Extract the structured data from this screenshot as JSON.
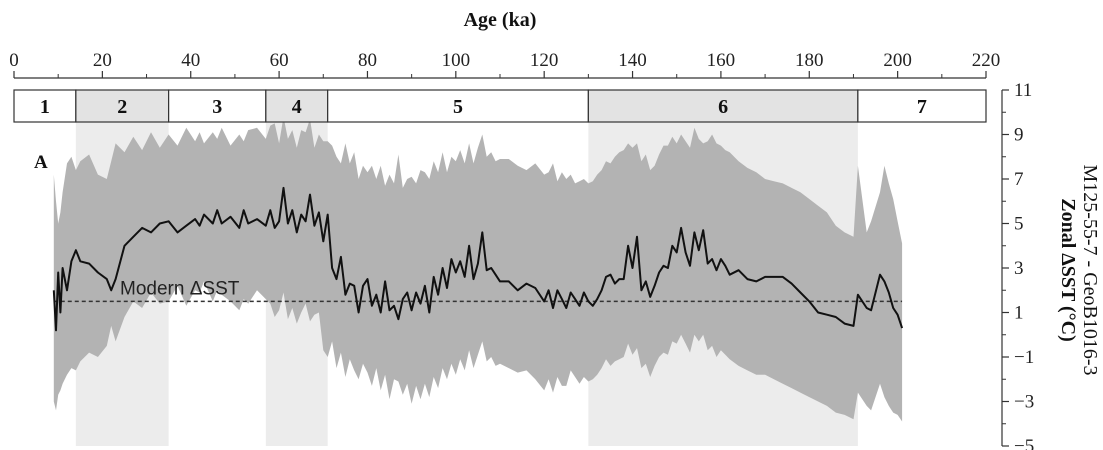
{
  "chart_data": {
    "type": "line",
    "title": "",
    "panel_label": "A",
    "xlabel": "Age (ka)",
    "ylabel": [
      "Zonal ΔSST (°C)",
      "M125-55-7 - GeoB1016-3"
    ],
    "xlim": [
      0,
      220
    ],
    "ylim": [
      -5,
      11
    ],
    "x_ticks": [
      0,
      20,
      40,
      60,
      80,
      100,
      120,
      140,
      160,
      180,
      200,
      220
    ],
    "y_ticks": [
      -5,
      -3,
      -1,
      1,
      3,
      5,
      7,
      9,
      11
    ],
    "y_tick_labels": [
      "−5",
      "−3",
      "−1",
      "1",
      "3",
      "5",
      "7",
      "9",
      "11"
    ],
    "grid": false,
    "stages": [
      {
        "label": "1",
        "start": 0,
        "end": 14,
        "shaded": false
      },
      {
        "label": "2",
        "start": 14,
        "end": 35,
        "shaded": true
      },
      {
        "label": "3",
        "start": 35,
        "end": 57,
        "shaded": false
      },
      {
        "label": "4",
        "start": 57,
        "end": 71,
        "shaded": true
      },
      {
        "label": "5",
        "start": 71,
        "end": 130,
        "shaded": false
      },
      {
        "label": "6",
        "start": 130,
        "end": 191,
        "shaded": true
      },
      {
        "label": "7",
        "start": 191,
        "end": 220,
        "shaded": false
      }
    ],
    "reference_line": {
      "label": "Modern ΔSST",
      "y": 1.5
    },
    "series": [
      {
        "type": "line",
        "x": [
          9,
          9.5,
          10,
          10.5,
          11,
          12,
          13,
          14,
          15,
          17,
          19,
          21,
          22,
          23,
          25,
          27,
          29,
          31,
          33,
          35,
          37,
          39,
          41,
          42,
          43,
          45,
          46,
          47,
          49,
          51,
          52,
          53,
          55,
          57,
          58,
          59,
          60,
          61,
          62,
          63,
          64,
          65,
          66,
          67,
          68,
          69,
          70,
          71,
          72,
          73,
          74,
          75,
          76,
          77,
          78,
          79,
          80,
          81,
          82,
          83,
          84,
          85,
          86,
          87,
          88,
          89,
          90,
          91,
          92,
          93,
          94,
          95,
          96,
          97,
          98,
          99,
          100,
          101,
          102,
          103,
          104,
          105,
          106,
          107,
          108,
          109,
          110,
          112,
          114,
          116,
          118,
          120,
          121,
          122,
          123,
          124,
          125,
          126,
          127,
          128,
          129,
          130,
          131,
          132,
          133,
          134,
          135,
          136,
          137,
          138,
          139,
          140,
          141,
          142,
          143,
          144,
          145,
          146,
          147,
          148,
          149,
          150,
          151,
          152,
          153,
          154,
          155,
          156,
          157,
          158,
          159,
          160,
          161,
          162,
          164,
          166,
          168,
          170,
          172,
          174,
          176,
          178,
          180,
          182,
          184,
          186,
          188,
          190,
          191,
          193,
          194,
          196,
          197,
          198,
          199,
          200,
          201
        ],
        "y": [
          2.0,
          0.2,
          2.8,
          1.0,
          3.0,
          2.0,
          3.3,
          3.8,
          3.3,
          3.2,
          2.8,
          2.5,
          2.0,
          2.5,
          4.0,
          4.4,
          4.8,
          4.6,
          5.0,
          5.1,
          4.6,
          4.9,
          5.2,
          4.9,
          5.4,
          5.0,
          5.6,
          5.0,
          5.3,
          4.8,
          5.6,
          5.0,
          5.2,
          4.9,
          5.6,
          4.8,
          5.1,
          6.6,
          5.0,
          5.6,
          4.6,
          5.4,
          5.1,
          6.3,
          4.9,
          5.5,
          4.2,
          5.4,
          3.0,
          2.5,
          3.5,
          1.8,
          2.3,
          2.2,
          1.0,
          2.2,
          2.5,
          1.3,
          1.8,
          1.0,
          2.4,
          1.1,
          1.3,
          0.7,
          1.6,
          1.9,
          1.1,
          1.9,
          1.4,
          2.2,
          1.0,
          2.6,
          1.8,
          3.0,
          2.1,
          3.4,
          2.8,
          3.3,
          2.6,
          4.0,
          2.5,
          3.2,
          4.6,
          2.9,
          3.0,
          2.7,
          2.4,
          2.4,
          2.0,
          2.3,
          2.1,
          1.5,
          2.0,
          1.2,
          2.0,
          1.6,
          1.2,
          1.9,
          1.6,
          1.3,
          1.9,
          1.5,
          1.3,
          1.6,
          2.0,
          2.6,
          2.7,
          2.3,
          2.5,
          2.5,
          4.0,
          3.0,
          4.4,
          2.0,
          2.4,
          1.7,
          2.2,
          2.8,
          3.1,
          3.0,
          4.0,
          3.7,
          4.8,
          3.7,
          3.1,
          4.6,
          3.8,
          4.7,
          3.2,
          3.4,
          2.9,
          3.4,
          3.1,
          2.7,
          2.9,
          2.5,
          2.4,
          2.6,
          2.6,
          2.6,
          2.3,
          1.9,
          1.5,
          1.0,
          0.9,
          0.8,
          0.5,
          0.4,
          1.8,
          1.2,
          1.1,
          2.7,
          2.4,
          1.9,
          1.2,
          0.9,
          0.3
        ],
        "upper": [
          7.2,
          6.0,
          5.0,
          5.5,
          6.4,
          7.7,
          8.0,
          7.4,
          7.8,
          8.1,
          7.2,
          7.0,
          7.8,
          8.6,
          8.2,
          8.9,
          8.3,
          9.1,
          8.4,
          9.0,
          8.5,
          9.3,
          8.7,
          9.1,
          8.6,
          9.1,
          8.8,
          9.3,
          8.5,
          9.0,
          8.7,
          9.2,
          9.3,
          8.8,
          9.4,
          9.5,
          8.6,
          9.8,
          8.8,
          9.2,
          8.4,
          9.2,
          9.1,
          9.7,
          8.4,
          9.0,
          8.7,
          8.7,
          8.5,
          8.0,
          7.7,
          8.6,
          7.7,
          8.2,
          7.0,
          7.6,
          7.3,
          7.6,
          7.0,
          7.6,
          6.7,
          7.2,
          6.8,
          8.1,
          6.6,
          7.0,
          7.1,
          6.8,
          7.4,
          7.3,
          7.0,
          7.8,
          7.3,
          8.2,
          7.3,
          8.0,
          7.8,
          8.3,
          7.7,
          8.6,
          7.7,
          8.4,
          9.0,
          8.0,
          8.2,
          7.8,
          7.9,
          7.9,
          7.6,
          7.4,
          7.7,
          7.2,
          7.3,
          7.7,
          6.9,
          7.3,
          7.0,
          7.2,
          6.8,
          6.9,
          7.0,
          6.8,
          6.9,
          7.2,
          7.4,
          7.8,
          7.7,
          8.0,
          8.2,
          8.3,
          8.6,
          8.4,
          8.6,
          7.8,
          8.1,
          7.4,
          7.6,
          8.1,
          8.5,
          8.5,
          8.9,
          8.6,
          9.0,
          8.7,
          8.4,
          9.3,
          8.8,
          8.6,
          8.7,
          9.0,
          8.6,
          8.5,
          8.3,
          8.2,
          7.8,
          7.5,
          7.3,
          7.0,
          6.9,
          6.8,
          6.6,
          6.4,
          6.1,
          5.8,
          5.5,
          4.9,
          4.6,
          4.4,
          7.6,
          4.6,
          5.1,
          6.4,
          7.6,
          6.8,
          6.1,
          5.1,
          4.1
        ],
        "lower": [
          -3.0,
          -3.4,
          -2.7,
          -2.5,
          -2.2,
          -1.8,
          -1.5,
          -1.6,
          -1.2,
          -0.8,
          -1.0,
          -0.5,
          0.4,
          -0.3,
          0.8,
          1.5,
          1.2,
          1.9,
          1.4,
          1.5,
          2.2,
          1.3,
          2.0,
          1.9,
          2.4,
          1.5,
          2.0,
          1.8,
          1.5,
          1.1,
          1.6,
          1.4,
          2.0,
          1.6,
          1.4,
          0.8,
          1.1,
          1.9,
          0.7,
          1.2,
          0.5,
          1.0,
          1.4,
          0.6,
          0.9,
          1.0,
          -0.7,
          -1.0,
          -0.3,
          -1.5,
          -0.8,
          -1.9,
          -1.1,
          -1.6,
          -2.0,
          -1.3,
          -1.7,
          -2.3,
          -1.5,
          -2.5,
          -1.8,
          -2.9,
          -2.0,
          -2.1,
          -2.7,
          -2.2,
          -3.1,
          -2.3,
          -2.9,
          -2.2,
          -2.8,
          -1.9,
          -2.4,
          -1.5,
          -2.0,
          -1.3,
          -1.8,
          -1.1,
          -1.6,
          -0.7,
          -1.5,
          -0.9,
          -0.3,
          -1.2,
          -1.0,
          -1.4,
          -1.3,
          -1.5,
          -1.7,
          -1.6,
          -2.0,
          -2.5,
          -2.0,
          -2.6,
          -1.9,
          -2.3,
          -2.3,
          -1.6,
          -1.9,
          -2.2,
          -1.9,
          -2.1,
          -2.0,
          -1.8,
          -1.5,
          -1.1,
          -1.4,
          -1.2,
          -1.1,
          -1.0,
          -0.4,
          -0.9,
          -0.6,
          -1.5,
          -1.3,
          -1.9,
          -1.4,
          -1.0,
          -0.8,
          -0.9,
          -0.3,
          -0.4,
          0.0,
          -0.4,
          -0.8,
          0.0,
          -0.3,
          0.0,
          -0.7,
          -0.5,
          -1.0,
          -0.7,
          -0.9,
          -1.1,
          -1.4,
          -1.6,
          -1.8,
          -1.8,
          -2.0,
          -2.2,
          -2.4,
          -2.6,
          -2.8,
          -3.0,
          -3.2,
          -3.5,
          -3.6,
          -3.8,
          -2.6,
          -3.2,
          -3.4,
          -2.2,
          -2.8,
          -3.2,
          -3.5,
          -3.6,
          -3.9
        ]
      }
    ]
  }
}
